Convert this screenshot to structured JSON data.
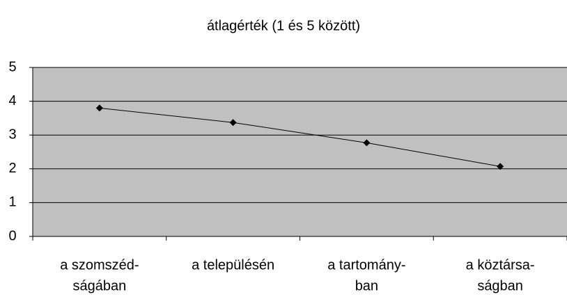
{
  "chart_data": {
    "type": "line",
    "title": "átlagérték (1 és 5 között)",
    "categories": [
      [
        "a szomszéd-",
        "ságában"
      ],
      [
        "a településén"
      ],
      [
        "a tartomány-",
        "ban"
      ],
      [
        "a köztársa-",
        "ságban"
      ]
    ],
    "values": [
      3.8,
      3.37,
      2.77,
      2.07
    ],
    "color": "#000000",
    "plot_background": "#c0c0c0",
    "ylim": [
      0,
      5
    ],
    "yticks": [
      0,
      1,
      2,
      3,
      4,
      5
    ],
    "grid": true
  }
}
